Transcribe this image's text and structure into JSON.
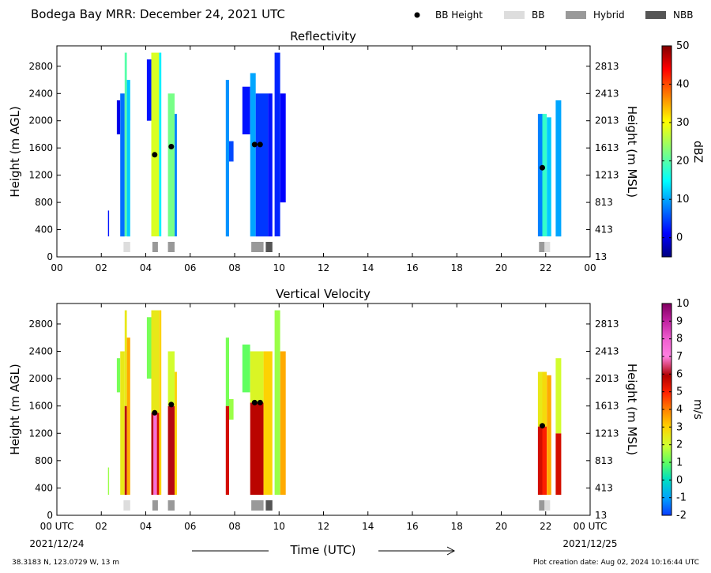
{
  "header": {
    "title": "Bodega Bay MRR:  December 24, 2021 UTC",
    "legend": [
      {
        "label": "BB Height",
        "kind": "dot",
        "color": "#000000"
      },
      {
        "label": "BB",
        "kind": "box",
        "color": "#dddddd"
      },
      {
        "label": "Hybrid",
        "kind": "box",
        "color": "#999999"
      },
      {
        "label": "NBB",
        "kind": "box",
        "color": "#555555"
      }
    ]
  },
  "footer": {
    "location": "38.3183 N, 123.0729 W, 13 m",
    "creation": "Plot creation date: Aug 02, 2024 10:16:44 UTC",
    "time_label": "Time (UTC)",
    "date_start": "2021/12/24",
    "date_end": "2021/12/25"
  },
  "chart_data": [
    {
      "type": "heatmap",
      "title": "Reflectivity",
      "ylabel": "Height (m AGL)",
      "ylabel_right": "Height (m MSL)",
      "xlabel": "",
      "xlim": [
        0,
        24
      ],
      "ylim": [
        0,
        3100
      ],
      "x_tick_labels": [
        "00",
        "02",
        "04",
        "06",
        "08",
        "10",
        "12",
        "14",
        "16",
        "18",
        "20",
        "22",
        "00"
      ],
      "y_ticks": [
        0,
        400,
        800,
        1200,
        1600,
        2000,
        2400,
        2800
      ],
      "y_ticks_right": [
        "13",
        "413",
        "813",
        "1213",
        "1613",
        "2013",
        "2413",
        "2813"
      ],
      "colorbar": {
        "label": "dBZ",
        "min": -5,
        "max": 50,
        "ticks": [
          0,
          10,
          20,
          30,
          40,
          50
        ],
        "colormap": "jet"
      },
      "bb_height_points": [
        {
          "time": 4.4,
          "height": 1500
        },
        {
          "time": 5.15,
          "height": 1620
        },
        {
          "time": 8.9,
          "height": 1650
        },
        {
          "time": 9.15,
          "height": 1650
        },
        {
          "time": 21.85,
          "height": 1310
        }
      ],
      "bb_type_bars": [
        {
          "start": 3.0,
          "end": 3.3,
          "type": "BB"
        },
        {
          "start": 4.3,
          "end": 4.55,
          "type": "Hybrid"
        },
        {
          "start": 5.0,
          "end": 5.3,
          "type": "Hybrid"
        },
        {
          "start": 8.75,
          "end": 9.3,
          "type": "Hybrid"
        },
        {
          "start": 9.4,
          "end": 9.7,
          "type": "NBB"
        },
        {
          "start": 21.7,
          "end": 21.95,
          "type": "Hybrid"
        },
        {
          "start": 21.95,
          "end": 22.2,
          "type": "BB"
        }
      ],
      "echo_columns": [
        {
          "start": 2.3,
          "end": 2.35,
          "bottom": 300,
          "top": 680,
          "value": 2
        },
        {
          "start": 2.7,
          "end": 2.85,
          "bottom": 1800,
          "top": 2300,
          "value": 0
        },
        {
          "start": 2.85,
          "end": 3.05,
          "bottom": 300,
          "top": 2400,
          "value": 7
        },
        {
          "start": 3.05,
          "end": 3.15,
          "bottom": 300,
          "top": 3000,
          "value": 20
        },
        {
          "start": 3.15,
          "end": 3.3,
          "bottom": 300,
          "top": 2600,
          "value": 12
        },
        {
          "start": 4.05,
          "end": 4.25,
          "bottom": 2000,
          "top": 2900,
          "value": 2
        },
        {
          "start": 4.25,
          "end": 4.6,
          "bottom": 300,
          "top": 3000,
          "value": 28
        },
        {
          "start": 4.6,
          "end": 4.7,
          "bottom": 300,
          "top": 3000,
          "value": 14
        },
        {
          "start": 5.0,
          "end": 5.3,
          "bottom": 300,
          "top": 2400,
          "value": 22
        },
        {
          "start": 5.3,
          "end": 5.4,
          "bottom": 300,
          "top": 2100,
          "value": 8
        },
        {
          "start": 7.6,
          "end": 7.75,
          "bottom": 300,
          "top": 2600,
          "value": 9
        },
        {
          "start": 7.75,
          "end": 7.95,
          "bottom": 1400,
          "top": 1700,
          "value": 5
        },
        {
          "start": 8.35,
          "end": 8.7,
          "bottom": 1800,
          "top": 2500,
          "value": 2
        },
        {
          "start": 8.7,
          "end": 8.95,
          "bottom": 300,
          "top": 2700,
          "value": 10
        },
        {
          "start": 8.95,
          "end": 9.5,
          "bottom": 300,
          "top": 2400,
          "value": 4
        },
        {
          "start": 9.5,
          "end": 9.7,
          "bottom": 300,
          "top": 2400,
          "value": 2
        },
        {
          "start": 9.8,
          "end": 10.05,
          "bottom": 300,
          "top": 3000,
          "value": 3
        },
        {
          "start": 10.05,
          "end": 10.3,
          "bottom": 800,
          "top": 2400,
          "value": 1
        },
        {
          "start": 21.65,
          "end": 21.85,
          "bottom": 300,
          "top": 2100,
          "value": 8
        },
        {
          "start": 21.85,
          "end": 22.05,
          "bottom": 300,
          "top": 2100,
          "value": 18
        },
        {
          "start": 22.05,
          "end": 22.25,
          "bottom": 300,
          "top": 2050,
          "value": 12
        },
        {
          "start": 22.45,
          "end": 22.7,
          "bottom": 300,
          "top": 2300,
          "value": 10
        }
      ]
    },
    {
      "type": "heatmap",
      "title": "Vertical Velocity",
      "ylabel": "Height (m AGL)",
      "ylabel_right": "Height (m MSL)",
      "xlabel": "Time (UTC)",
      "xlim": [
        0,
        24
      ],
      "ylim": [
        0,
        3100
      ],
      "x_tick_labels": [
        "00 UTC",
        "02",
        "04",
        "06",
        "08",
        "10",
        "12",
        "14",
        "16",
        "18",
        "20",
        "22",
        "00 UTC"
      ],
      "y_ticks": [
        0,
        400,
        800,
        1200,
        1600,
        2000,
        2400,
        2800
      ],
      "y_ticks_right": [
        "13",
        "413",
        "813",
        "1213",
        "1613",
        "2013",
        "2413",
        "2813"
      ],
      "colorbar": {
        "label": "m/s",
        "min": -2,
        "max": 10,
        "ticks": [
          -2,
          -1,
          0,
          1,
          2,
          3,
          4,
          5,
          6,
          7,
          8,
          9,
          10
        ]
      },
      "bb_height_points": [
        {
          "time": 4.4,
          "height": 1500
        },
        {
          "time": 5.15,
          "height": 1620
        },
        {
          "time": 8.9,
          "height": 1650
        },
        {
          "time": 9.15,
          "height": 1650
        },
        {
          "time": 21.85,
          "height": 1310
        }
      ],
      "bb_type_bars": [
        {
          "start": 3.0,
          "end": 3.3,
          "type": "BB"
        },
        {
          "start": 4.3,
          "end": 4.55,
          "type": "Hybrid"
        },
        {
          "start": 5.0,
          "end": 5.3,
          "type": "Hybrid"
        },
        {
          "start": 8.75,
          "end": 9.3,
          "type": "Hybrid"
        },
        {
          "start": 9.4,
          "end": 9.7,
          "type": "NBB"
        },
        {
          "start": 21.7,
          "end": 21.95,
          "type": "Hybrid"
        },
        {
          "start": 21.95,
          "end": 22.2,
          "type": "BB"
        }
      ],
      "echo_columns": [
        {
          "start": 2.3,
          "end": 2.35,
          "bottom": 300,
          "top": 700,
          "value": 1.5
        },
        {
          "start": 2.7,
          "end": 2.85,
          "bottom": 1800,
          "top": 2300,
          "value": 1.2
        },
        {
          "start": 2.85,
          "end": 3.05,
          "bottom": 300,
          "top": 2400,
          "value": 2.5
        },
        {
          "start": 3.05,
          "end": 3.15,
          "bottom": 300,
          "top": 1600,
          "value": 6.0
        },
        {
          "start": 3.05,
          "end": 3.15,
          "bottom": 1600,
          "top": 3000,
          "value": 2.5
        },
        {
          "start": 3.15,
          "end": 3.3,
          "bottom": 300,
          "top": 2600,
          "value": 3.5
        },
        {
          "start": 4.05,
          "end": 4.25,
          "bottom": 2000,
          "top": 2900,
          "value": 1.2
        },
        {
          "start": 4.25,
          "end": 4.35,
          "bottom": 300,
          "top": 1500,
          "value": 6.0
        },
        {
          "start": 4.35,
          "end": 4.5,
          "bottom": 300,
          "top": 1500,
          "value": 7.5
        },
        {
          "start": 4.5,
          "end": 4.6,
          "bottom": 300,
          "top": 1500,
          "value": 5.5
        },
        {
          "start": 4.25,
          "end": 4.6,
          "bottom": 1500,
          "top": 3000,
          "value": 2.5
        },
        {
          "start": 4.6,
          "end": 4.7,
          "bottom": 300,
          "top": 3000,
          "value": 3.0
        },
        {
          "start": 5.0,
          "end": 5.3,
          "bottom": 300,
          "top": 1600,
          "value": 6.0
        },
        {
          "start": 5.0,
          "end": 5.3,
          "bottom": 1600,
          "top": 2400,
          "value": 2.0
        },
        {
          "start": 5.3,
          "end": 5.4,
          "bottom": 300,
          "top": 2100,
          "value": 3.0
        },
        {
          "start": 7.6,
          "end": 7.75,
          "bottom": 300,
          "top": 1600,
          "value": 5.5
        },
        {
          "start": 7.6,
          "end": 7.75,
          "bottom": 1600,
          "top": 2600,
          "value": 1.2
        },
        {
          "start": 7.75,
          "end": 7.95,
          "bottom": 1400,
          "top": 1700,
          "value": 1.5
        },
        {
          "start": 8.35,
          "end": 8.7,
          "bottom": 1800,
          "top": 2500,
          "value": 1.0
        },
        {
          "start": 8.7,
          "end": 9.3,
          "bottom": 300,
          "top": 1650,
          "value": 5.8
        },
        {
          "start": 8.7,
          "end": 9.3,
          "bottom": 1650,
          "top": 2400,
          "value": 2.2
        },
        {
          "start": 9.3,
          "end": 9.7,
          "bottom": 300,
          "top": 2400,
          "value": 3.0
        },
        {
          "start": 9.8,
          "end": 10.05,
          "bottom": 300,
          "top": 3000,
          "value": 1.5
        },
        {
          "start": 10.05,
          "end": 10.3,
          "bottom": 300,
          "top": 2400,
          "value": 3.5
        },
        {
          "start": 21.65,
          "end": 21.85,
          "bottom": 300,
          "top": 1300,
          "value": 5.5
        },
        {
          "start": 21.65,
          "end": 21.85,
          "bottom": 1300,
          "top": 2100,
          "value": 2.5
        },
        {
          "start": 21.85,
          "end": 22.05,
          "bottom": 300,
          "top": 1300,
          "value": 5.0
        },
        {
          "start": 21.85,
          "end": 22.05,
          "bottom": 1300,
          "top": 2100,
          "value": 2.8
        },
        {
          "start": 22.05,
          "end": 22.25,
          "bottom": 300,
          "top": 2050,
          "value": 3.5
        },
        {
          "start": 22.45,
          "end": 22.7,
          "bottom": 300,
          "top": 1200,
          "value": 5.5
        },
        {
          "start": 22.45,
          "end": 22.7,
          "bottom": 1200,
          "top": 2300,
          "value": 2.0
        }
      ]
    }
  ]
}
